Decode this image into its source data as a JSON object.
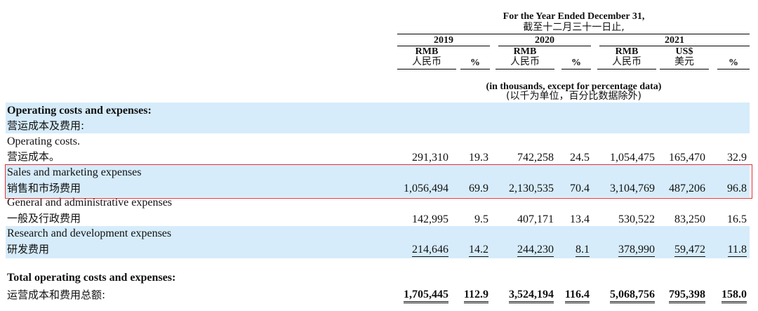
{
  "header": {
    "title_en": "For the Year Ended December 31,",
    "title_cn": "截至十二月三十一日止,",
    "years": [
      "2019",
      "2020",
      "2021"
    ],
    "col_rmb": "RMB",
    "col_rmb_cn": "人民币",
    "col_usd": "US$",
    "col_usd_cn": "美元",
    "col_pct": "%",
    "units_en": "(in thousands, except for percentage data)",
    "units_cn": "(以千为单位，百分比数据除外)"
  },
  "rows": [
    {
      "label_en": "Operating costs and expenses:",
      "label_cn": "营运成本及费用:"
    },
    {
      "label_en": "Operating costs.",
      "label_cn": "营运成本。",
      "values": [
        "291,310",
        "19.3",
        "742,258",
        "24.5",
        "1,054,475",
        "165,470",
        "32.9"
      ]
    },
    {
      "label_en": "Sales and marketing expenses",
      "label_cn": "销售和市场费用",
      "values": [
        "1,056,494",
        "69.9",
        "2,130,535",
        "70.4",
        "3,104,769",
        "487,206",
        "96.8"
      ]
    },
    {
      "label_en": "General and administrative expenses",
      "label_cn": "一般及行政费用",
      "values": [
        "142,995",
        "9.5",
        "407,171",
        "13.4",
        "530,522",
        "83,250",
        "16.5"
      ]
    },
    {
      "label_en": "Research and development expenses",
      "label_cn": "研发费用",
      "values": [
        "214,646",
        "14.2",
        "244,230",
        "8.1",
        "378,990",
        "59,472",
        "11.8"
      ]
    },
    {
      "label_en": "Total operating costs and expenses:",
      "label_cn": "运营成本和费用总额:",
      "values": [
        "1,705,445",
        "112.9",
        "3,524,194",
        "116.4",
        "5,068,756",
        "795,398",
        "158.0"
      ]
    }
  ],
  "highlight_color": "#e0303a",
  "band_color": "#d6ecfa"
}
